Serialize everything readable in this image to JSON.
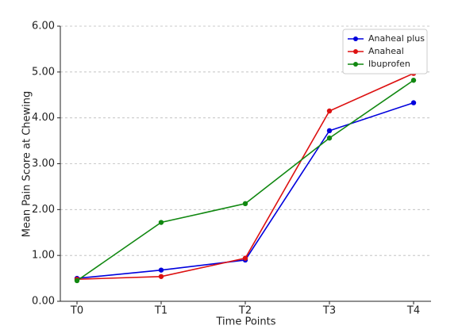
{
  "chart_data": {
    "type": "line",
    "x_label": "Time Points",
    "y_label": "Mean Pain Score at Chewing",
    "categories": [
      "T0",
      "T1",
      "T2",
      "T3",
      "T4"
    ],
    "series": [
      {
        "name": "Anaheal plus",
        "color": "#0000dd",
        "values": [
          0.5,
          0.68,
          0.9,
          3.72,
          4.33
        ]
      },
      {
        "name": "Anaheal",
        "color": "#dd1111",
        "values": [
          0.48,
          0.54,
          0.94,
          4.15,
          4.97
        ]
      },
      {
        "name": "Ibuprofen",
        "color": "#118811",
        "values": [
          0.45,
          1.72,
          2.13,
          3.56,
          4.82
        ]
      }
    ],
    "ylim": [
      0,
      6
    ],
    "yticks": [
      {
        "value": 0,
        "label": "0.00"
      },
      {
        "value": 1,
        "label": "1.00"
      },
      {
        "value": 2,
        "label": "2.00"
      },
      {
        "value": 3,
        "label": "3.00"
      },
      {
        "value": 4,
        "label": "4.00"
      },
      {
        "value": 5,
        "label": "5.00"
      },
      {
        "value": 6,
        "label": "6.00"
      }
    ],
    "grid": true,
    "legend": "upper-right"
  }
}
